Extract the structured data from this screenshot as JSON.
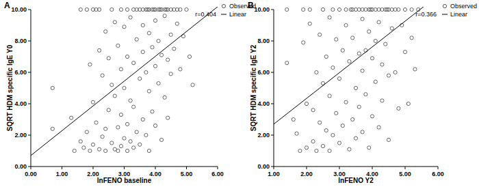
{
  "chart_data": [
    {
      "type": "scatter",
      "panel_label": "A",
      "x_label": "lnFENO baseline",
      "y_label": "SQRT HDM specific IgE Y0",
      "annotation": "r=0.404",
      "xlim": [
        0,
        6
      ],
      "ylim": [
        0,
        10
      ],
      "xticks": [
        {
          "value": 0,
          "label": "0.00"
        },
        {
          "value": 1,
          "label": "1.00"
        },
        {
          "value": 2,
          "label": "2.00"
        },
        {
          "value": 3,
          "label": "3.00"
        },
        {
          "value": 4,
          "label": "4.00"
        },
        {
          "value": 5,
          "label": "5.00"
        },
        {
          "value": 6,
          "label": "6.00"
        }
      ],
      "yticks": [
        {
          "value": 0,
          "label": "0.00"
        },
        {
          "value": 2,
          "label": "2.00"
        },
        {
          "value": 4,
          "label": "4.00"
        },
        {
          "value": 6,
          "label": "6.00"
        },
        {
          "value": 8,
          "label": "8.00"
        },
        {
          "value": 10,
          "label": "10.00"
        }
      ],
      "legend": "right",
      "series": [
        {
          "name": "Observed",
          "type": "scatter",
          "marker": "circle",
          "color": "#555555",
          "x": [
            0.7,
            0.7,
            1.3,
            1.4,
            1.6,
            1.6,
            1.7,
            1.8,
            1.8,
            1.9,
            1.9,
            2.0,
            2.0,
            2.1,
            2.1,
            2.2,
            2.2,
            2.2,
            2.3,
            2.3,
            2.4,
            2.4,
            2.4,
            2.5,
            2.5,
            2.6,
            2.6,
            2.6,
            2.7,
            2.7,
            2.7,
            2.8,
            2.8,
            2.8,
            2.9,
            2.9,
            2.9,
            2.9,
            3.0,
            3.0,
            3.0,
            3.1,
            3.1,
            3.1,
            3.1,
            3.2,
            3.2,
            3.2,
            3.3,
            3.3,
            3.3,
            3.3,
            3.4,
            3.4,
            3.4,
            3.5,
            3.5,
            3.5,
            3.6,
            3.6,
            3.6,
            3.6,
            3.7,
            3.7,
            3.7,
            3.8,
            3.8,
            3.8,
            3.8,
            3.9,
            3.9,
            3.9,
            4.0,
            4.0,
            4.0,
            4.0,
            4.1,
            4.1,
            4.1,
            4.2,
            4.2,
            4.2,
            4.3,
            4.3,
            4.3,
            4.4,
            4.4,
            4.4,
            4.5,
            4.5,
            4.5,
            4.6,
            4.6,
            4.7,
            4.7,
            4.8,
            4.8,
            4.9,
            5.0,
            5.1,
            5.2,
            4.15,
            3.95,
            3.75,
            4.35,
            2.0
          ],
          "values": [
            2.4,
            5.0,
            3.1,
            1.0,
            10,
            1.6,
            1.2,
            10,
            2.2,
            6.5,
            1.0,
            4.1,
            1.4,
            10,
            2.8,
            10,
            7.4,
            1.1,
            5.8,
            1.9,
            8.6,
            2.4,
            1.0,
            6.9,
            3.6,
            10,
            5.2,
            1.5,
            9.2,
            4.5,
            1.1,
            7.7,
            2.5,
            1.0,
            10,
            6.2,
            3.3,
            1.3,
            8.9,
            5.0,
            1.8,
            10,
            7.0,
            2.7,
            1.0,
            9.5,
            4.2,
            1.6,
            10,
            6.6,
            3.8,
            1.2,
            10,
            8.1,
            2.2,
            10,
            5.6,
            1.4,
            10,
            9.0,
            7.3,
            3.0,
            10,
            6.0,
            2.0,
            10,
            8.5,
            4.8,
            1.0,
            10,
            7.6,
            3.5,
            10,
            9.3,
            6.4,
            2.6,
            10,
            8.0,
            5.3,
            10,
            7.1,
            1.7,
            10,
            9.6,
            4.4,
            10,
            6.8,
            3.1,
            10,
            8.4,
            5.9,
            10,
            7.5,
            10,
            9.1,
            10,
            6.2,
            8.3,
            10,
            7.0,
            5.2,
            10,
            10,
            10,
            10,
            10
          ]
        },
        {
          "name": "Linear",
          "type": "line",
          "line_style": "solid",
          "color": "#000000",
          "intercept": 0.7,
          "slope": 1.58
        }
      ]
    },
    {
      "type": "scatter",
      "panel_label": "B",
      "x_label": "lnFENO Y2",
      "y_label": "SQRT HDM specific IgE Y2",
      "annotation": "r=0.366",
      "xlim": [
        1,
        6
      ],
      "ylim": [
        0,
        10
      ],
      "xticks": [
        {
          "value": 1,
          "label": "1.00"
        },
        {
          "value": 2,
          "label": "2.00"
        },
        {
          "value": 3,
          "label": "3.00"
        },
        {
          "value": 4,
          "label": "4.00"
        },
        {
          "value": 5,
          "label": "5.00"
        },
        {
          "value": 6,
          "label": "6.00"
        }
      ],
      "yticks": [
        {
          "value": 0,
          "label": "0.00"
        },
        {
          "value": 2,
          "label": "2.00"
        },
        {
          "value": 4,
          "label": "4.00"
        },
        {
          "value": 6,
          "label": "6.00"
        },
        {
          "value": 8,
          "label": "8.00"
        },
        {
          "value": 10,
          "label": "10.00"
        }
      ],
      "legend": "right",
      "series": [
        {
          "name": "Observed",
          "type": "scatter",
          "marker": "circle",
          "color": "#555555",
          "x": [
            1.4,
            1.4,
            1.6,
            1.7,
            1.8,
            1.9,
            1.9,
            2.0,
            2.0,
            2.1,
            2.1,
            2.2,
            2.2,
            2.3,
            2.3,
            2.4,
            2.4,
            2.5,
            2.5,
            2.5,
            2.6,
            2.6,
            2.7,
            2.7,
            2.7,
            2.8,
            2.8,
            2.8,
            2.9,
            2.9,
            3.0,
            3.0,
            3.0,
            3.1,
            3.1,
            3.2,
            3.2,
            3.2,
            3.3,
            3.3,
            3.4,
            3.4,
            3.4,
            3.5,
            3.5,
            3.5,
            3.6,
            3.6,
            3.6,
            3.7,
            3.7,
            3.7,
            3.7,
            3.8,
            3.8,
            3.8,
            3.9,
            3.9,
            3.9,
            4.0,
            4.0,
            4.0,
            4.1,
            4.1,
            4.1,
            4.2,
            4.2,
            4.2,
            4.3,
            4.3,
            4.3,
            4.4,
            4.4,
            4.5,
            4.5,
            4.5,
            4.6,
            4.6,
            4.7,
            4.7,
            4.8,
            4.8,
            4.9,
            5.0,
            5.0,
            5.1,
            5.2,
            5.2,
            5.3,
            5.4,
            4.45,
            3.95,
            3.35
          ],
          "values": [
            6.6,
            10,
            3.0,
            2.1,
            1.0,
            10,
            7.9,
            4.0,
            1.2,
            10,
            9.1,
            3.6,
            1.6,
            6.0,
            1.0,
            8.4,
            2.8,
            10,
            5.3,
            1.3,
            7.0,
            2.3,
            9.5,
            4.5,
            1.0,
            10,
            6.3,
            2.0,
            8.1,
            3.4,
            10,
            5.6,
            1.5,
            7.4,
            2.6,
            10,
            9.0,
            4.1,
            6.7,
            1.1,
            10,
            8.2,
            3.0,
            10,
            5.0,
            1.8,
            10,
            7.2,
            3.8,
            10,
            9.4,
            6.1,
            2.2,
            10,
            7.4,
            4.6,
            10,
            8.6,
            1.2,
            10,
            6.9,
            3.2,
            10,
            8.0,
            5.4,
            10,
            9.2,
            2.5,
            10,
            6.5,
            4.2,
            10,
            7.8,
            10,
            5.8,
            1.7,
            10,
            8.8,
            10,
            6.0,
            10,
            3.7,
            9.0,
            10,
            7.3,
            4.0,
            10,
            8.2,
            6.2,
            10,
            10,
            10,
            10
          ]
        },
        {
          "name": "Linear",
          "type": "line",
          "line_style": "solid",
          "color": "#000000",
          "intercept": 1.06,
          "slope": 1.64
        }
      ]
    }
  ]
}
